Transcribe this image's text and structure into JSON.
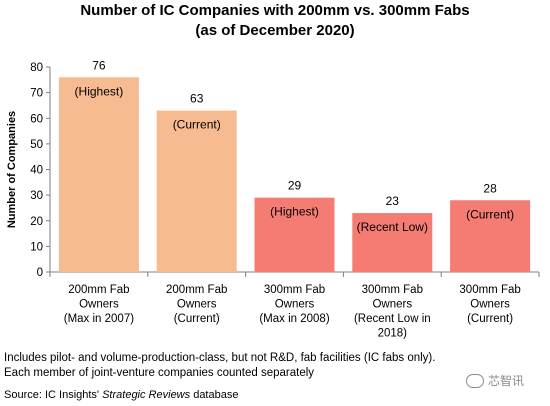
{
  "title_line1": "Number of IC Companies with 200mm vs. 300mm Fabs",
  "title_line2": "(as of December 2020)",
  "chart_data": {
    "type": "bar",
    "ylabel": "Number of Companies",
    "ylim": [
      0,
      80
    ],
    "yticks": [
      0,
      10,
      20,
      30,
      40,
      50,
      60,
      70,
      80
    ],
    "grid": false,
    "categories": [
      [
        "200mm Fab",
        "Owners",
        "(Max in 2007)"
      ],
      [
        "200mm Fab",
        "Owners",
        "(Current)"
      ],
      [
        "300mm Fab",
        "Owners",
        "(Max in 2008)"
      ],
      [
        "300mm Fab",
        "Owners",
        "(Recent Low in",
        "2018)"
      ],
      [
        "300mm Fab",
        "Owners",
        "(Current)"
      ]
    ],
    "values": [
      76,
      63,
      29,
      23,
      28
    ],
    "annotations": [
      "(Highest)",
      "(Current)",
      "(Highest)",
      "(Recent Low)",
      "(Current)"
    ],
    "colors": [
      "#f7bb92",
      "#f7bb92",
      "#f47c72",
      "#f47c72",
      "#f47c72"
    ]
  },
  "notes": {
    "line1": "Includes pilot- and volume-production-class, but not R&D, fab facilities (IC fabs only).",
    "line2": "Each member of joint-venture companies counted separately"
  },
  "source": {
    "prefix": "Source:  IC Insights' ",
    "italic": "Strategic Reviews",
    "suffix": " database"
  },
  "watermark": "芯智讯",
  "watermark_icon": "wechat-icon"
}
